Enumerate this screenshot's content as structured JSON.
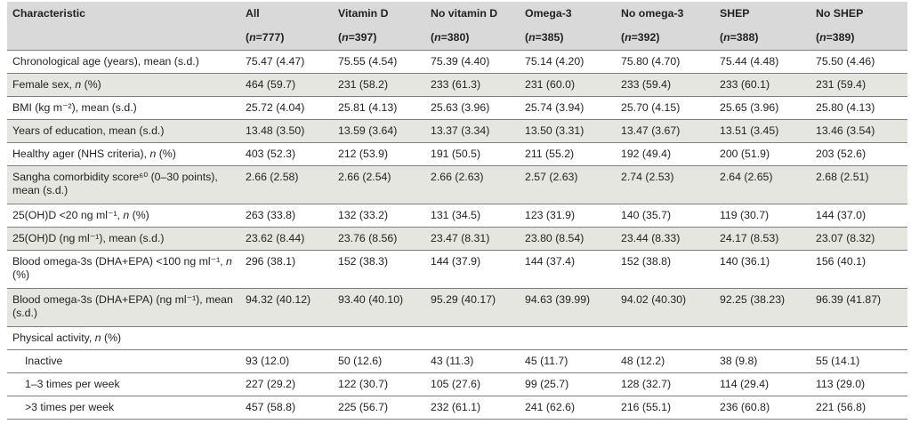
{
  "table": {
    "columns": [
      "Characteristic",
      "All",
      "Vitamin D",
      "No vitamin D",
      "Omega-3",
      "No omega-3",
      "SHEP",
      "No SHEP"
    ],
    "n_counts": [
      "",
      "(n=777)",
      "(n=397)",
      "(n=380)",
      "(n=385)",
      "(n=392)",
      "(n=388)",
      "(n=389)"
    ],
    "rows": [
      {
        "label": "Chronological age (years), mean (s.d.)",
        "values": [
          "75.47 (4.47)",
          "75.55 (4.54)",
          "75.39 (4.40)",
          "75.14 (4.20)",
          "75.80 (4.70)",
          "75.44 (4.48)",
          "75.50 (4.46)"
        ]
      },
      {
        "label": "Female sex, n (%)",
        "values": [
          "464 (59.7)",
          "231 (58.2)",
          "233 (61.3)",
          "231 (60.0)",
          "233 (59.4)",
          "233 (60.1)",
          "231 (59.4)"
        ]
      },
      {
        "label": "BMI (kg m⁻²), mean (s.d.)",
        "values": [
          "25.72 (4.04)",
          "25.81 (4.13)",
          "25.63 (3.96)",
          "25.74 (3.94)",
          "25.70 (4.15)",
          "25.65 (3.96)",
          "25.80 (4.13)"
        ]
      },
      {
        "label": "Years of education, mean (s.d.)",
        "values": [
          "13.48 (3.50)",
          "13.59 (3.64)",
          "13.37 (3.34)",
          "13.50 (3.31)",
          "13.47 (3.67)",
          "13.51 (3.45)",
          "13.46 (3.54)"
        ]
      },
      {
        "label": "Healthy ager (NHS criteria), n (%)",
        "values": [
          "403 (52.3)",
          "212 (53.9)",
          "191 (50.5)",
          "211 (55.2)",
          "192 (49.4)",
          "200 (51.9)",
          "203 (52.6)"
        ]
      },
      {
        "label": "Sangha comorbidity score⁶⁰ (0–30 points), mean (s.d.)",
        "values": [
          "2.66 (2.58)",
          "2.66 (2.54)",
          "2.66 (2.63)",
          "2.57 (2.63)",
          "2.74 (2.53)",
          "2.64 (2.65)",
          "2.68 (2.51)"
        ]
      },
      {
        "label": "25(OH)D <20 ng ml⁻¹, n (%)",
        "values": [
          "263 (33.8)",
          "132 (33.2)",
          "131 (34.5)",
          "123 (31.9)",
          "140 (35.7)",
          "119 (30.7)",
          "144 (37.0)"
        ]
      },
      {
        "label": "25(OH)D (ng ml⁻¹), mean (s.d.)",
        "values": [
          "23.62 (8.44)",
          "23.76 (8.56)",
          "23.47 (8.31)",
          "23.80 (8.54)",
          "23.44 (8.33)",
          "24.17 (8.53)",
          "23.07 (8.32)"
        ]
      },
      {
        "label": "Blood omega-3s (DHA+EPA) <100 ng ml⁻¹, n (%)",
        "values": [
          "296 (38.1)",
          "152 (38.3)",
          "144 (37.9)",
          "144 (37.4)",
          "152 (38.8)",
          "140 (36.1)",
          "156 (40.1)"
        ]
      },
      {
        "label": "Blood omega-3s (DHA+EPA) (ng ml⁻¹), mean (s.d.)",
        "values": [
          "94.32 (40.12)",
          "93.40 (40.10)",
          "95.29 (40.17)",
          "94.63 (39.99)",
          "94.02 (40.30)",
          "92.25 (38.23)",
          "96.39 (41.87)"
        ]
      },
      {
        "label": "Physical activity, n (%)",
        "values": [
          "",
          "",
          "",
          "",
          "",
          "",
          ""
        ]
      },
      {
        "label": "Inactive",
        "values": [
          "93 (12.0)",
          "50 (12.6)",
          "43 (11.3)",
          "45 (11.7)",
          "48 (12.2)",
          "38 (9.8)",
          "55 (14.1)"
        ]
      },
      {
        "label": "1–3 times per week",
        "values": [
          "227 (29.2)",
          "122 (30.7)",
          "105 (27.6)",
          "99 (25.7)",
          "128 (32.7)",
          "114 (29.4)",
          "113 (29.0)"
        ]
      },
      {
        "label": ">3 times per week",
        "values": [
          "457 (58.8)",
          "225 (56.7)",
          "232 (61.1)",
          "241 (62.6)",
          "216 (55.1)",
          "236 (60.8)",
          "221 (56.8)"
        ]
      }
    ]
  },
  "colors": {
    "header_bg": "#d9d9d9",
    "shaded_row_bg": "#e6e6e1",
    "rule": "#7f7f7f",
    "text": "#231f20"
  }
}
